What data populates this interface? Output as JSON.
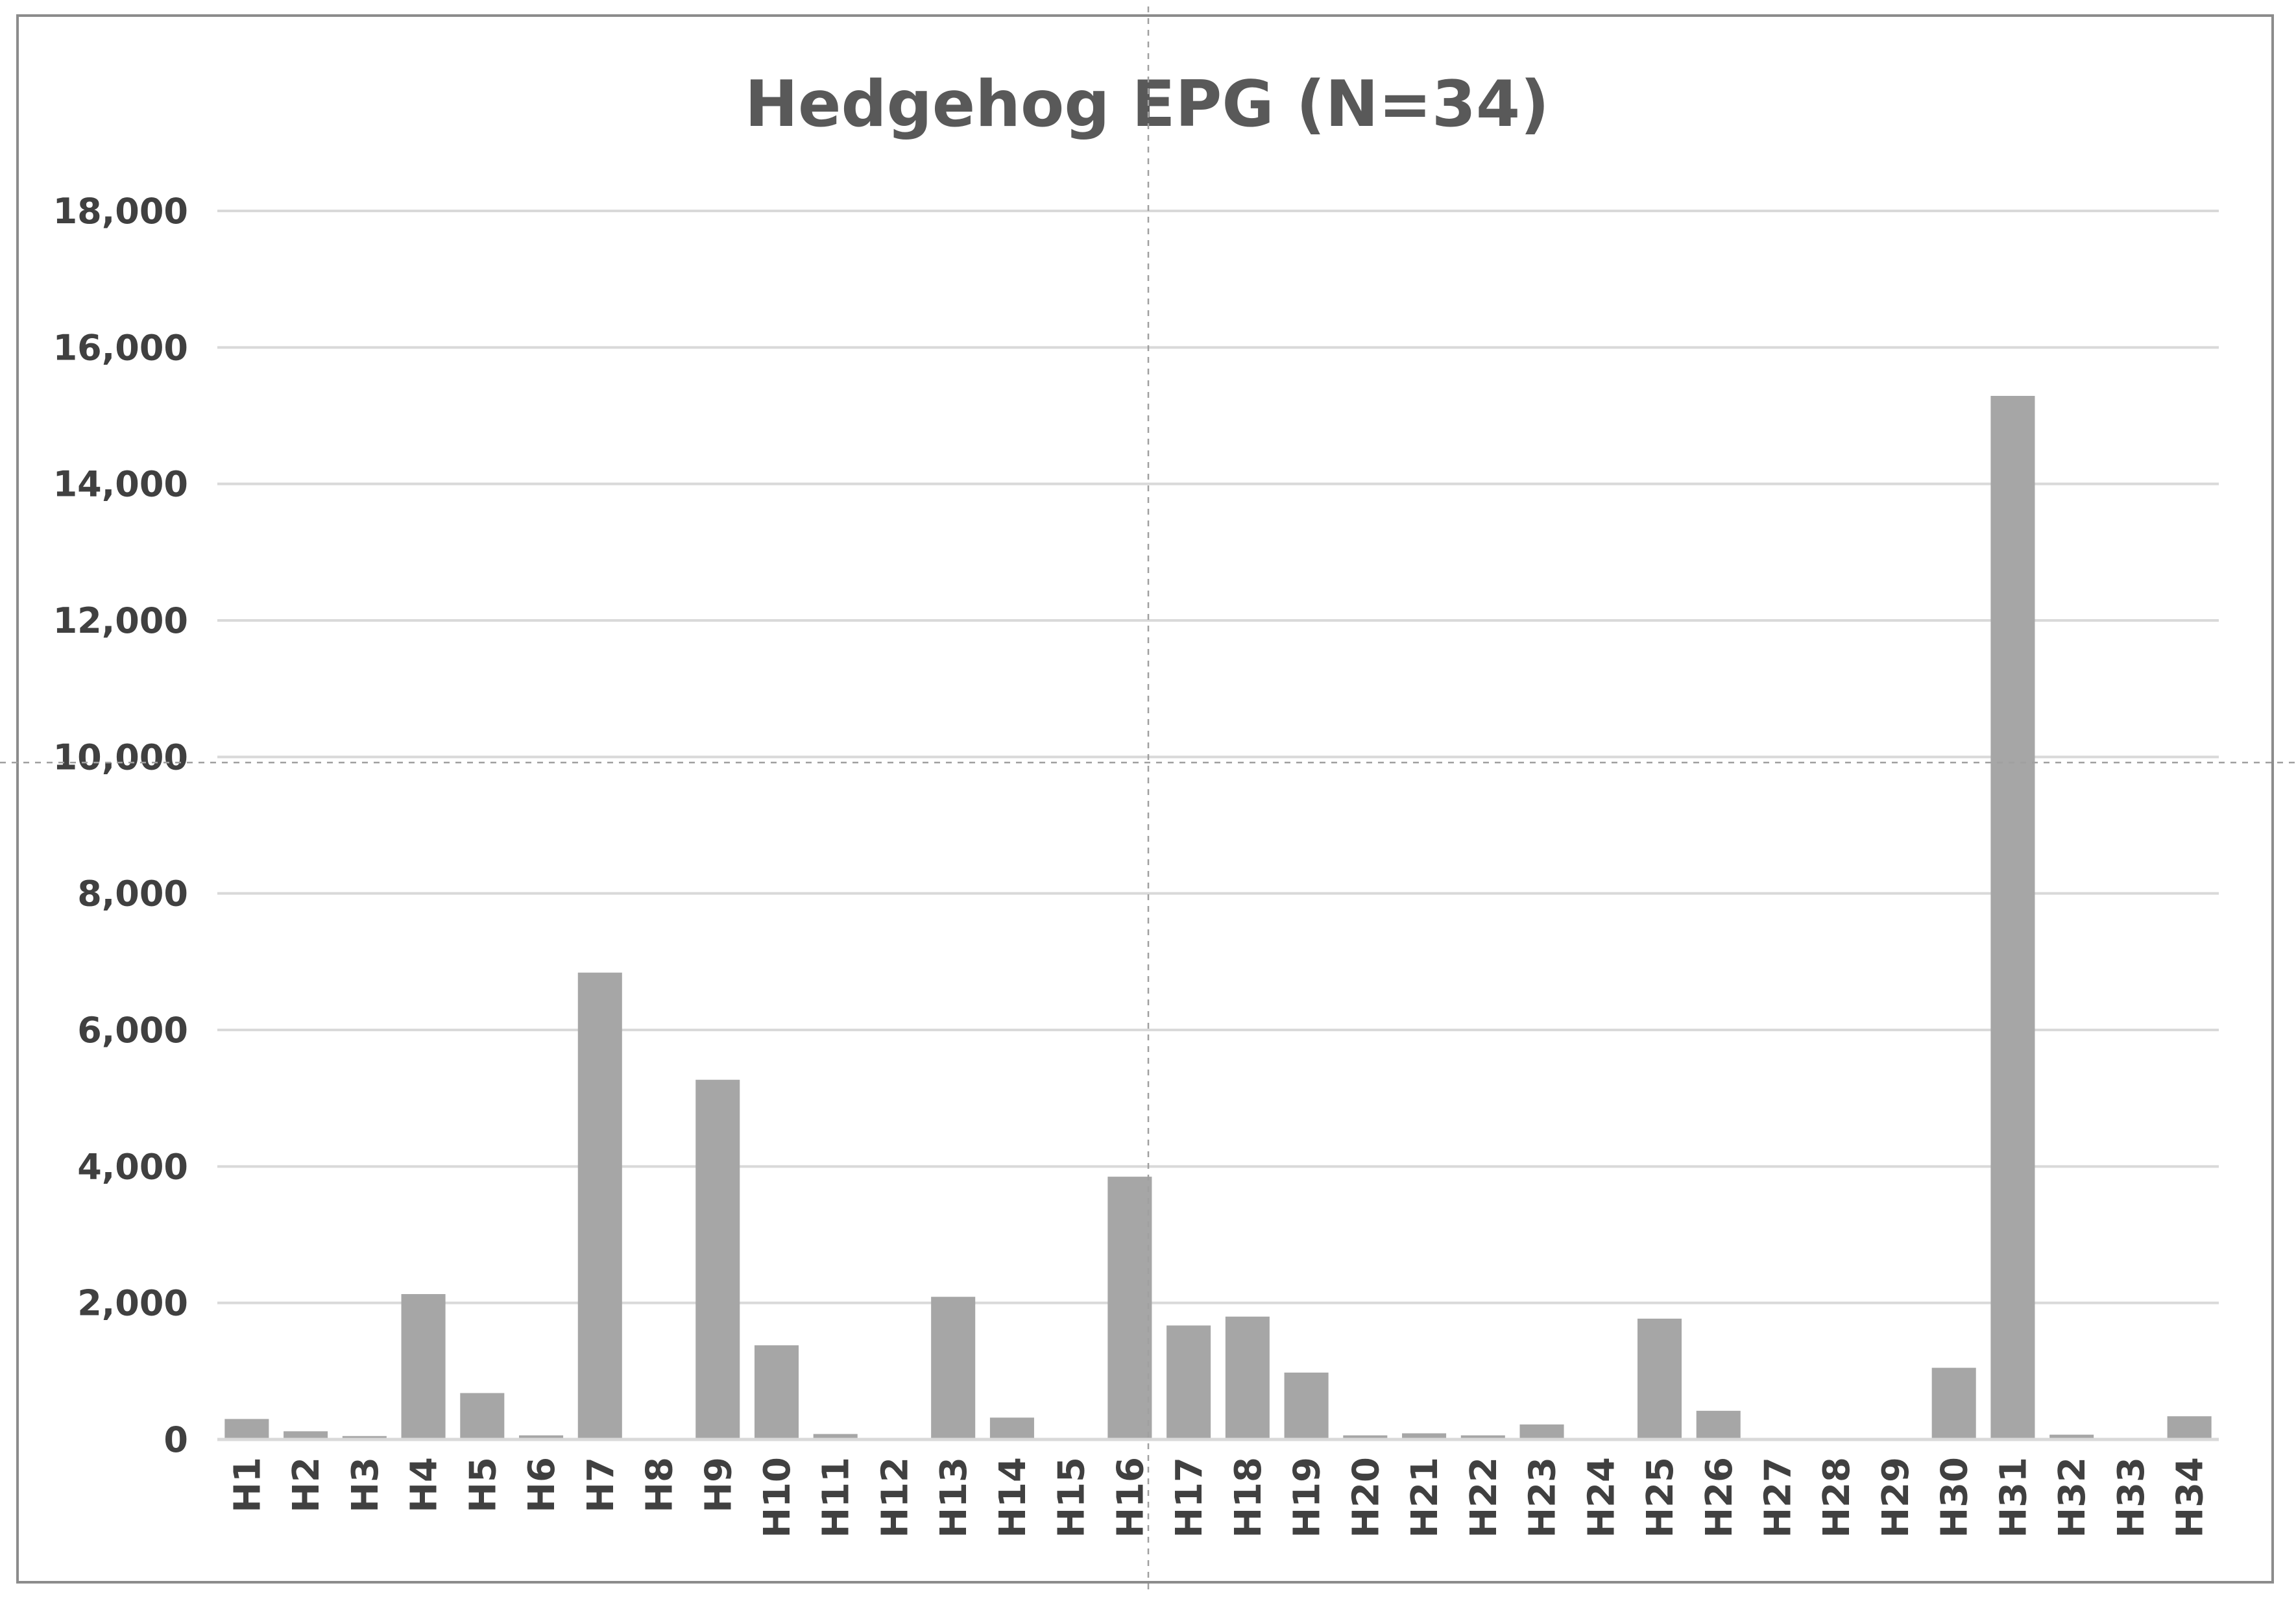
{
  "chart_data": {
    "type": "bar",
    "title": "Hedgehog EPG (N=34)",
    "xlabel": "",
    "ylabel": "",
    "ylim": [
      0,
      18000
    ],
    "yticks": [
      0,
      2000,
      4000,
      6000,
      8000,
      10000,
      12000,
      14000,
      16000,
      18000
    ],
    "ytick_labels": [
      "0",
      "2,000",
      "4,000",
      "6,000",
      "8,000",
      "10,000",
      "12,000",
      "14,000",
      "16,000",
      "18,000"
    ],
    "grid": true,
    "legend": "none",
    "bar_color": "#a6a6a6",
    "categories": [
      "H1",
      "H2",
      "H3",
      "H4",
      "H5",
      "H6",
      "H7",
      "H8",
      "H9",
      "H10",
      "H11",
      "H12",
      "H13",
      "H14",
      "H15",
      "H16",
      "H17",
      "H18",
      "H19",
      "H20",
      "H21",
      "H22",
      "H23",
      "H24",
      "H25",
      "H26",
      "H27",
      "H28",
      "H29",
      "H30",
      "H31",
      "H32",
      "H33",
      "H34"
    ],
    "values": [
      300,
      120,
      50,
      2130,
      680,
      60,
      6840,
      0,
      5270,
      1380,
      80,
      0,
      2090,
      320,
      0,
      3850,
      1670,
      1800,
      980,
      60,
      90,
      60,
      220,
      0,
      1770,
      420,
      0,
      0,
      0,
      1050,
      15290,
      70,
      0,
      340
    ]
  }
}
